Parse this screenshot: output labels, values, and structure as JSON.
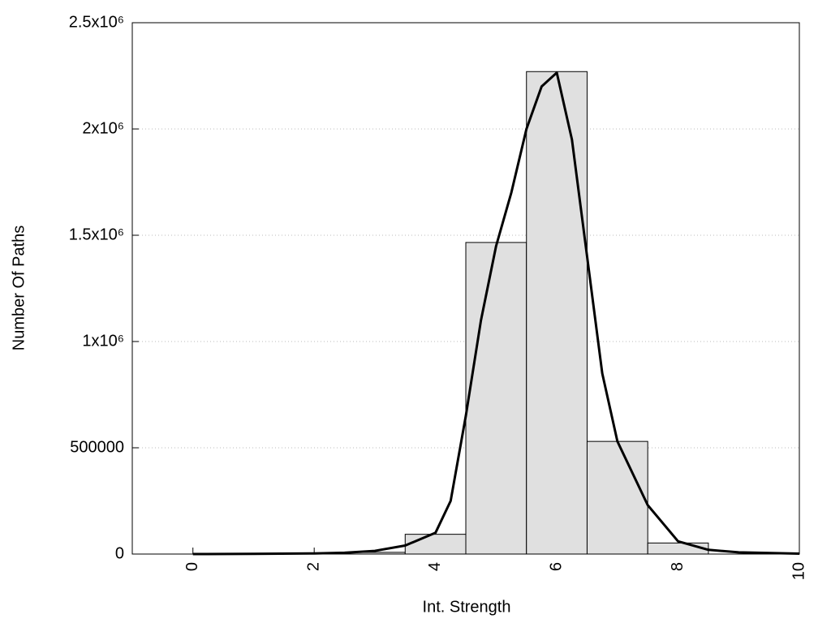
{
  "chart_data": {
    "type": "histogram",
    "x_label": "Int. Strength",
    "y_label": "Number Of Paths",
    "bins": [
      2.5,
      3.5,
      4.5,
      5.5,
      6.5,
      7.5,
      8.5
    ],
    "values": [
      8000,
      93000,
      1466000,
      2270000,
      530000,
      52000
    ],
    "color": "#e0e0e0",
    "curve": {
      "color": "#000000",
      "x": [
        0,
        1,
        2,
        2.5,
        3,
        3.5,
        4,
        4.25,
        4.5,
        4.75,
        5,
        5.25,
        5.5,
        5.75,
        6,
        6.25,
        6.5,
        6.75,
        7,
        7.5,
        8,
        8.5,
        9,
        10
      ],
      "values": [
        0,
        1000,
        3000,
        6000,
        15000,
        40000,
        100000,
        250000,
        650000,
        1100000,
        1450000,
        1700000,
        2000000,
        2200000,
        2265000,
        1950000,
        1400000,
        850000,
        530000,
        230000,
        60000,
        20000,
        8000,
        2000
      ]
    },
    "xlim": [
      -1,
      10
    ],
    "ylim": [
      0,
      2500000
    ],
    "xticks": [
      0,
      2,
      4,
      6,
      8,
      10
    ],
    "yticks": [
      0,
      500000,
      {
        "value": 1000000,
        "label": "1x10⁶"
      },
      {
        "value": 1500000,
        "label": "1.5x10⁶"
      },
      {
        "value": 2000000,
        "label": "2x10⁶"
      },
      {
        "value": 2500000,
        "label": "2.5x10⁶"
      }
    ],
    "grid": true
  }
}
